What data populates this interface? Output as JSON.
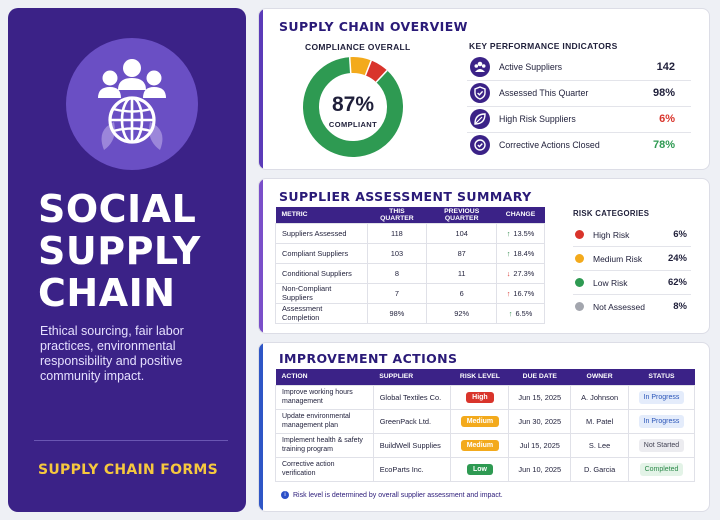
{
  "hero": {
    "title_lines": [
      "SOCIAL",
      "SUPPLY",
      "CHAIN"
    ],
    "description": "Ethical sourcing, fair labor practices, environmental responsibility and positive community impact.",
    "footer": "SUPPLY CHAIN FORMS",
    "icon": "people-globe-leaves-icon"
  },
  "overview": {
    "title": "SUPPLY CHAIN OVERVIEW",
    "compliance": {
      "heading": "COMPLIANCE OVERALL",
      "value": "87%",
      "label": "COMPLIANT",
      "segments": [
        {
          "name": "compliant",
          "percent": 87,
          "color": "#2e9a52"
        },
        {
          "name": "medium",
          "percent": 7,
          "color": "#f3aa1c"
        },
        {
          "name": "high",
          "percent": 6,
          "color": "#d9342b"
        }
      ]
    },
    "kpi": {
      "heading": "KEY PERFORMANCE INDICATORS",
      "items": [
        {
          "label": "Active Suppliers",
          "value": "142",
          "color": "#1f1f3a",
          "icon": "users-icon"
        },
        {
          "label": "Assessed This Quarter",
          "value": "98%",
          "color": "#1f1f3a",
          "icon": "shield-check-icon"
        },
        {
          "label": "High Risk Suppliers",
          "value": "6%",
          "color": "#d9342b",
          "icon": "leaf-icon"
        },
        {
          "label": "Corrective Actions Closed",
          "value": "78%",
          "color": "#2e9a52",
          "icon": "check-circle-icon"
        }
      ]
    }
  },
  "assessment": {
    "title": "SUPPLIER ASSESSMENT SUMMARY",
    "columns": [
      "METRIC",
      "THIS QUARTER",
      "PREVIOUS QUARTER",
      "CHANGE"
    ],
    "rows": [
      {
        "metric": "Suppliers Assessed",
        "this": "118",
        "prev": "104",
        "dir": "up",
        "change": "13.5%"
      },
      {
        "metric": "Compliant Suppliers",
        "this": "103",
        "prev": "87",
        "dir": "up",
        "change": "18.4%"
      },
      {
        "metric": "Conditional Suppliers",
        "this": "8",
        "prev": "11",
        "dir": "down",
        "change": "27.3%"
      },
      {
        "metric": "Non-Compliant Suppliers",
        "this": "7",
        "prev": "6",
        "dir": "up-red",
        "change": "16.7%"
      },
      {
        "metric": "Assessment Completion",
        "this": "98%",
        "prev": "92%",
        "dir": "up",
        "change": "6.5%"
      }
    ],
    "risk": {
      "heading": "RISK CATEGORIES",
      "items": [
        {
          "label": "High Risk",
          "value": "6%",
          "color": "#d9342b"
        },
        {
          "label": "Medium Risk",
          "value": "24%",
          "color": "#f3aa1c"
        },
        {
          "label": "Low Risk",
          "value": "62%",
          "color": "#2e9a52"
        },
        {
          "label": "Not Assessed",
          "value": "8%",
          "color": "#a3a6ae"
        }
      ]
    }
  },
  "actions": {
    "title": "IMPROVEMENT ACTIONS",
    "columns": [
      "ACTION",
      "SUPPLIER",
      "RISK LEVEL",
      "DUE DATE",
      "OWNER",
      "STATUS"
    ],
    "rows": [
      {
        "action": "Improve working hours management",
        "supplier": "Global Textiles Co.",
        "risk": "High",
        "risk_class": "risk-high",
        "due": "Jun 15, 2025",
        "owner": "A. Johnson",
        "status": "In Progress",
        "status_class": "st-progress"
      },
      {
        "action": "Update environmental management plan",
        "supplier": "GreenPack Ltd.",
        "risk": "Medium",
        "risk_class": "risk-medium",
        "due": "Jun 30, 2025",
        "owner": "M. Patel",
        "status": "In Progress",
        "status_class": "st-progress"
      },
      {
        "action": "Implement health & safety training program",
        "supplier": "BuildWell Supplies",
        "risk": "Medium",
        "risk_class": "risk-medium",
        "due": "Jul 15, 2025",
        "owner": "S. Lee",
        "status": "Not Started",
        "status_class": "st-not"
      },
      {
        "action": "Corrective action verification",
        "supplier": "EcoParts Inc.",
        "risk": "Low",
        "risk_class": "risk-low",
        "due": "Jun 10, 2025",
        "owner": "D. Garcia",
        "status": "Completed",
        "status_class": "st-done"
      }
    ],
    "note": "Risk level is determined by overall supplier assessment and impact."
  },
  "colors": {
    "brand": "#3b2287",
    "accent_overview": "#5b3bb8",
    "accent_assessment": "#7a4fc9",
    "accent_actions": "#2f56c6",
    "footer_text": "#f6c83e"
  }
}
